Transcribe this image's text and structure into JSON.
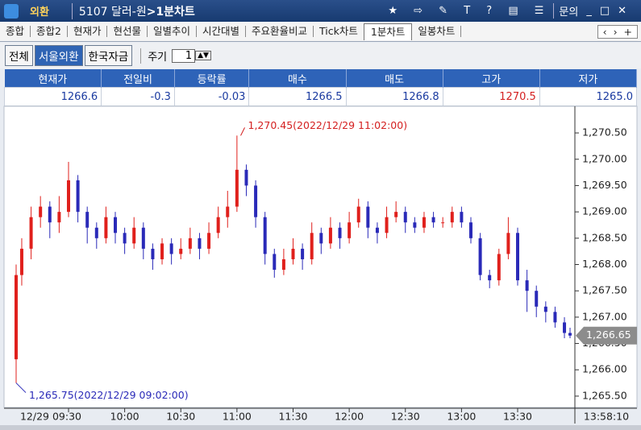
{
  "titlebar": {
    "menu": "외환",
    "code_name": "5107 달러-원",
    "screen": ">1분차트",
    "help": "문의"
  },
  "tabs": [
    "종합",
    "종합2",
    "현재가",
    "현선물",
    "일별추이",
    "시간대별",
    "주요환율비교",
    "Tick차트",
    "1분차트",
    "일봉차트"
  ],
  "markets": [
    "전체",
    "서울외환",
    "한국자금"
  ],
  "period": {
    "label": "주기",
    "value": "1"
  },
  "quote_table": {
    "headers": [
      "현재가",
      "전일비",
      "등락률",
      "매수",
      "매도",
      "고가",
      "저가"
    ],
    "values": [
      "1266.6",
      "-0.3",
      "-0.03",
      "1266.5",
      "1266.8",
      "1270.5",
      "1265.0"
    ]
  },
  "chart_data": {
    "type": "candlestick",
    "x": [
      "09:02",
      "09:05",
      "09:10",
      "09:15",
      "09:20",
      "09:25",
      "09:30",
      "09:35",
      "09:40",
      "09:45",
      "09:50",
      "09:55",
      "10:00",
      "10:05",
      "10:10",
      "10:15",
      "10:20",
      "10:25",
      "10:30",
      "10:35",
      "10:40",
      "10:45",
      "10:50",
      "10:55",
      "11:00",
      "11:05",
      "11:10",
      "11:15",
      "11:20",
      "11:25",
      "11:30",
      "11:35",
      "11:40",
      "11:45",
      "11:50",
      "11:55",
      "12:00",
      "12:05",
      "12:10",
      "12:15",
      "12:20",
      "12:25",
      "12:30",
      "12:35",
      "12:40",
      "12:45",
      "12:50",
      "12:55",
      "13:00",
      "13:05",
      "13:10",
      "13:15",
      "13:20",
      "13:25",
      "13:30",
      "13:35",
      "13:40",
      "13:45",
      "13:50",
      "13:55",
      "13:58"
    ],
    "open": [
      1266.2,
      1267.8,
      1268.3,
      1268.9,
      1269.1,
      1268.8,
      1269.0,
      1269.6,
      1269.0,
      1268.7,
      1268.5,
      1268.9,
      1268.6,
      1268.4,
      1268.7,
      1268.3,
      1268.1,
      1268.4,
      1268.2,
      1268.3,
      1268.5,
      1268.3,
      1268.6,
      1268.9,
      1269.1,
      1269.8,
      1269.5,
      1268.9,
      1268.2,
      1267.9,
      1268.1,
      1268.3,
      1268.1,
      1268.6,
      1268.4,
      1268.7,
      1268.5,
      1268.8,
      1269.1,
      1268.7,
      1268.6,
      1268.9,
      1269.0,
      1268.8,
      1268.7,
      1268.9,
      1268.8,
      1268.8,
      1269.0,
      1268.8,
      1268.5,
      1267.8,
      1267.7,
      1268.2,
      1268.6,
      1267.7,
      1267.5,
      1267.2,
      1267.1,
      1266.9,
      1266.7
    ],
    "high": [
      1268.0,
      1268.5,
      1269.1,
      1269.3,
      1269.2,
      1269.3,
      1269.95,
      1269.7,
      1269.1,
      1268.8,
      1269.1,
      1269.0,
      1268.7,
      1268.9,
      1268.8,
      1268.4,
      1268.5,
      1268.5,
      1268.5,
      1268.7,
      1268.6,
      1268.8,
      1269.1,
      1269.4,
      1270.45,
      1269.9,
      1269.6,
      1269.0,
      1268.3,
      1268.3,
      1268.5,
      1268.4,
      1268.8,
      1268.7,
      1268.9,
      1268.8,
      1269.0,
      1269.25,
      1269.2,
      1268.8,
      1269.1,
      1269.2,
      1269.1,
      1268.9,
      1269.0,
      1269.0,
      1268.9,
      1269.1,
      1269.1,
      1268.9,
      1268.6,
      1267.9,
      1268.3,
      1268.9,
      1268.7,
      1267.9,
      1267.6,
      1267.3,
      1267.2,
      1267.0,
      1266.8
    ],
    "low": [
      1265.75,
      1267.6,
      1268.1,
      1268.7,
      1268.5,
      1268.6,
      1268.9,
      1268.8,
      1268.4,
      1268.3,
      1268.4,
      1268.4,
      1268.2,
      1268.3,
      1268.1,
      1267.9,
      1268.0,
      1268.0,
      1268.1,
      1268.2,
      1268.1,
      1268.2,
      1268.5,
      1268.7,
      1269.0,
      1269.3,
      1268.7,
      1268.0,
      1267.75,
      1267.8,
      1268.0,
      1267.9,
      1268.0,
      1268.2,
      1268.3,
      1268.3,
      1268.4,
      1268.7,
      1268.5,
      1268.4,
      1268.5,
      1268.8,
      1268.6,
      1268.6,
      1268.6,
      1268.7,
      1268.7,
      1268.7,
      1268.7,
      1268.4,
      1267.7,
      1267.55,
      1267.6,
      1268.1,
      1267.6,
      1267.1,
      1267.0,
      1266.9,
      1266.8,
      1266.6,
      1266.6
    ],
    "close": [
      1267.8,
      1268.3,
      1268.9,
      1269.1,
      1268.8,
      1269.0,
      1269.6,
      1269.0,
      1268.7,
      1268.5,
      1268.9,
      1268.6,
      1268.4,
      1268.7,
      1268.3,
      1268.1,
      1268.4,
      1268.2,
      1268.3,
      1268.5,
      1268.3,
      1268.6,
      1268.9,
      1269.1,
      1269.8,
      1269.5,
      1268.9,
      1268.2,
      1267.9,
      1268.1,
      1268.3,
      1268.1,
      1268.6,
      1268.4,
      1268.7,
      1268.5,
      1268.8,
      1269.1,
      1268.7,
      1268.6,
      1268.9,
      1269.0,
      1268.8,
      1268.7,
      1268.9,
      1268.8,
      1268.8,
      1269.0,
      1268.8,
      1268.5,
      1267.8,
      1267.7,
      1268.2,
      1268.6,
      1267.7,
      1267.5,
      1267.2,
      1267.1,
      1266.9,
      1266.7,
      1266.65
    ],
    "up_color": "#e0201c",
    "down_color": "#2a2ab8",
    "xlim": [
      "09:02",
      "13:58"
    ],
    "xticks": [
      {
        "value": "09:30",
        "label": "12/29 09:30"
      },
      "10:00",
      "10:30",
      "11:00",
      "11:30",
      "12:00",
      "12:30",
      "13:00",
      "13:30"
    ],
    "time_label": "13:58:10",
    "ylim": [
      1265.3,
      1270.96
    ],
    "yticks": [
      {
        "value": 1265.5,
        "label": "1,265.50"
      },
      {
        "value": 1266,
        "label": "1,266.00"
      },
      {
        "value": 1266.5,
        "label": "1,266.50"
      },
      {
        "value": 1267,
        "label": "1,267.00"
      },
      {
        "value": 1267.5,
        "label": "1,267.50"
      },
      {
        "value": 1268,
        "label": "1,268.00"
      },
      {
        "value": 1268.5,
        "label": "1,268.50"
      },
      {
        "value": 1269,
        "label": "1,269.00"
      },
      {
        "value": 1269.5,
        "label": "1,269.50"
      },
      {
        "value": 1270,
        "label": "1,270.00"
      },
      {
        "value": 1270.5,
        "label": "1,270.50"
      }
    ],
    "grid": false,
    "last_price": {
      "value": 1266.65,
      "label": "1,266.65"
    },
    "annotations": [
      {
        "text": "1,270.45(2022/12/29 11:02:00)",
        "value": 1270.45,
        "x": "11:02",
        "color": "#d42020"
      },
      {
        "text": "1,265.75(2022/12/29 09:02:00)",
        "value": 1265.75,
        "x": "09:02",
        "color": "#2a2ab8"
      }
    ]
  }
}
